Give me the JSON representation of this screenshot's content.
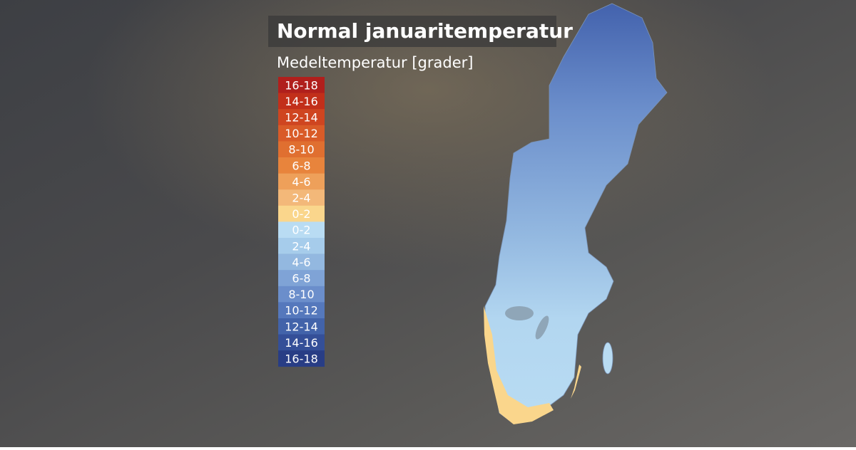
{
  "header": {
    "title": "Normal januaritemperatur",
    "subtitle": "Medeltemperatur [grader]"
  },
  "legend": {
    "items": [
      {
        "label": "16-18",
        "color": "#b01f1c"
      },
      {
        "label": "14-16",
        "color": "#c22f1a"
      },
      {
        "label": "12-14",
        "color": "#cf4520"
      },
      {
        "label": "10-12",
        "color": "#d95b28"
      },
      {
        "label": "8-10",
        "color": "#e06f30"
      },
      {
        "label": "6-8",
        "color": "#e8843c"
      },
      {
        "label": "4-6",
        "color": "#eea05a"
      },
      {
        "label": "2-4",
        "color": "#f3b879"
      },
      {
        "label": "0-2",
        "color": "#fad68c"
      },
      {
        "label": "0-2",
        "color": "#b9dcf3"
      },
      {
        "label": "2-4",
        "color": "#a6cceb"
      },
      {
        "label": "4-6",
        "color": "#93b8e0"
      },
      {
        "label": "6-8",
        "color": "#7fa3d6"
      },
      {
        "label": "8-10",
        "color": "#6b8ecb"
      },
      {
        "label": "10-12",
        "color": "#5578bc"
      },
      {
        "label": "12-14",
        "color": "#4263aa"
      },
      {
        "label": "14-16",
        "color": "#344f98"
      },
      {
        "label": "16-18",
        "color": "#283d85"
      }
    ]
  }
}
